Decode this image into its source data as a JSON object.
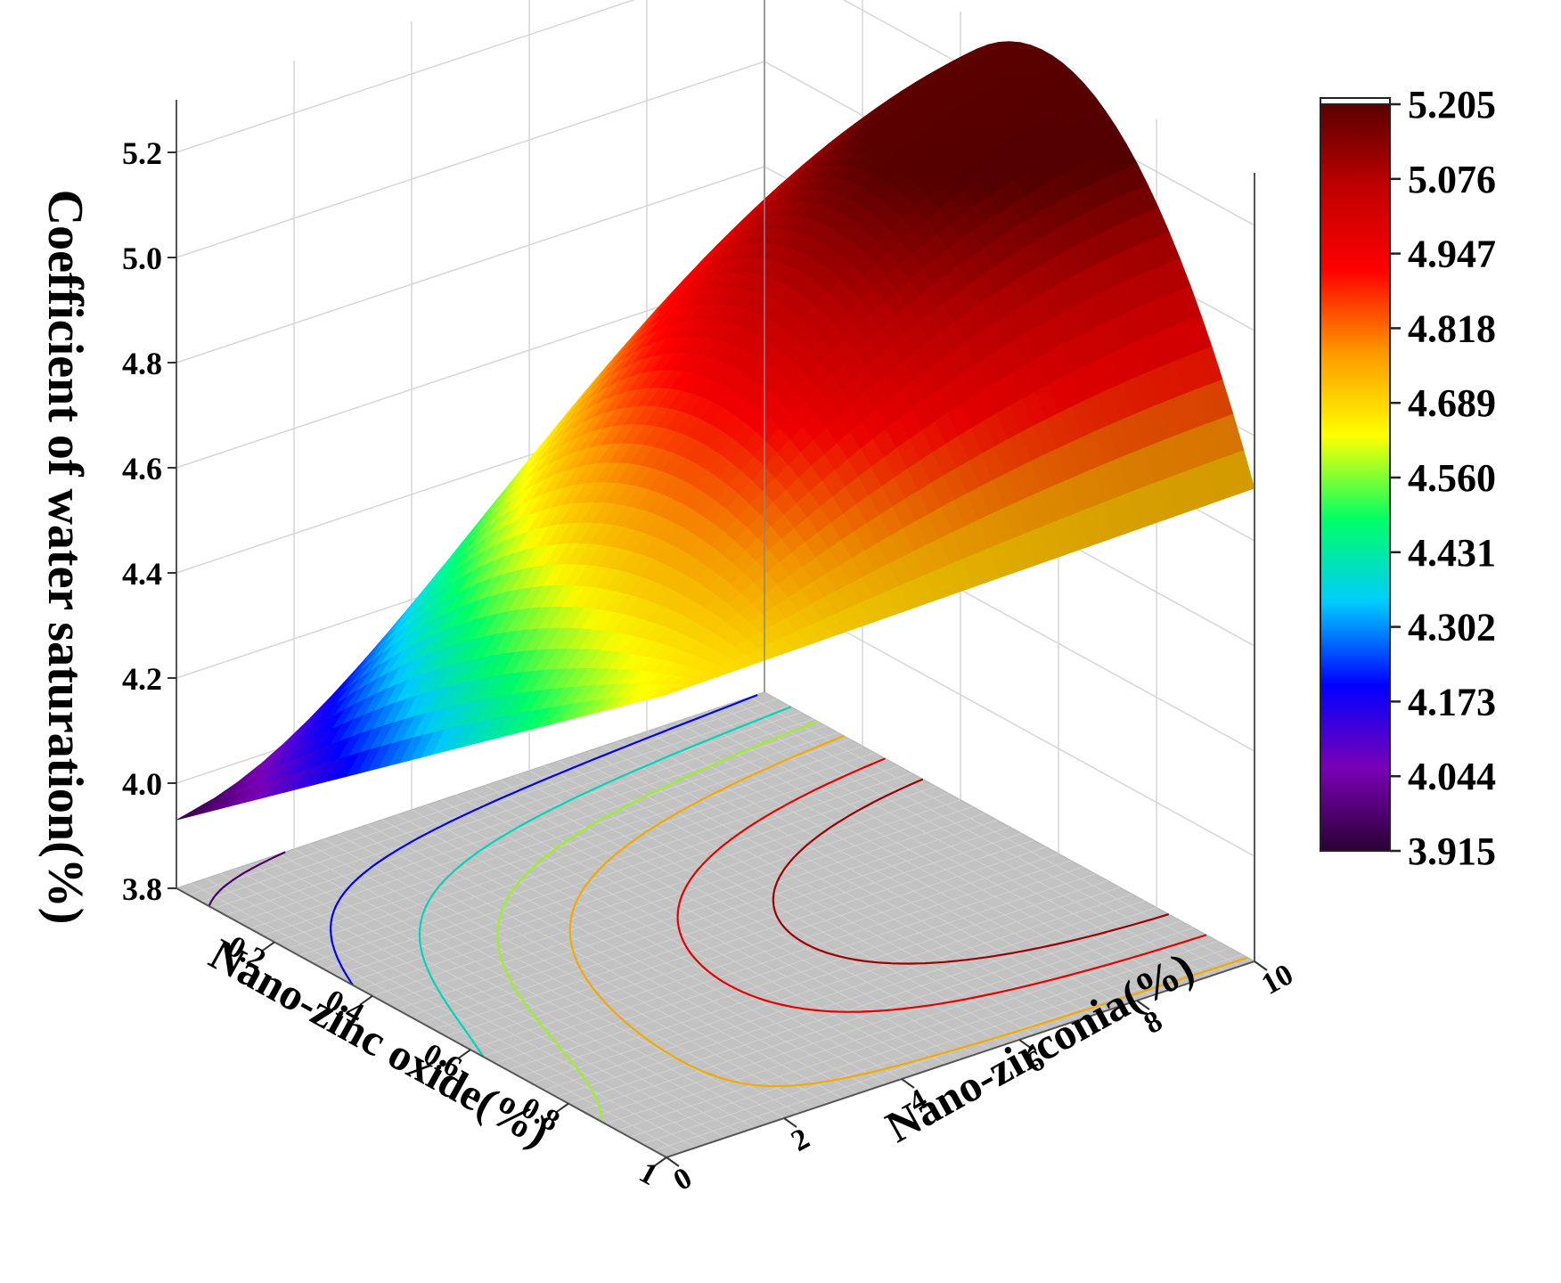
{
  "chart_data": {
    "type": "surface",
    "zlabel": "Coefficient of water saturation(%)",
    "xlabel": "Nano-zinc oxide(%)",
    "ylabel": "Nano-zirconia(%)",
    "x_range": [
      0,
      1
    ],
    "y_range": [
      0,
      10
    ],
    "z_range": [
      3.8,
      5.3
    ],
    "x_ticks": [
      "0.2",
      "0.4",
      "0.6",
      "0.8",
      "1"
    ],
    "y_ticks": [
      "0",
      "2",
      "4",
      "6",
      "8",
      "10"
    ],
    "z_ticks": [
      "3.8",
      "4.0",
      "4.2",
      "4.4",
      "4.6",
      "4.8",
      "5.0",
      "5.2"
    ],
    "colorbar": {
      "min": 3.915,
      "max": 5.205,
      "labels": [
        "5.205",
        "5.076",
        "4.947",
        "4.818",
        "4.689",
        "4.560",
        "4.431",
        "4.302",
        "4.173",
        "4.044",
        "3.915"
      ]
    },
    "corner_values": {
      "x0_y0": 3.93,
      "x0_y10": 4.2,
      "x1_y0": 4.68,
      "x1_y10": 4.7
    },
    "peak": {
      "x": 0.5,
      "y": 7.5,
      "z": 5.205
    },
    "contour_levels": [
      3.98,
      4.2,
      4.4,
      4.58,
      4.74,
      4.95,
      5.1
    ],
    "grid": true,
    "colormap": [
      "#2a0033",
      "#7a00b5",
      "#0000ff",
      "#00ccff",
      "#00ff66",
      "#ffff00",
      "#ff9900",
      "#ff0000",
      "#c00000",
      "#5a0000"
    ]
  }
}
